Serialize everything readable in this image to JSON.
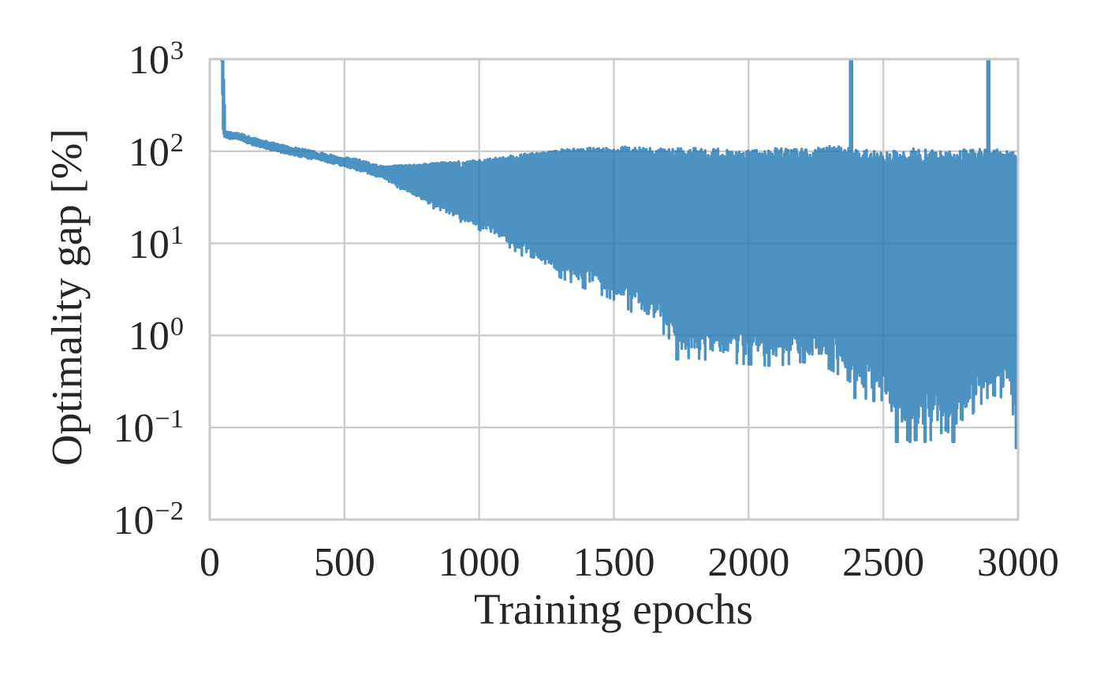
{
  "chart_data": {
    "type": "line",
    "title": "",
    "xlabel": "Training epochs",
    "ylabel": "Optimality gap [%]",
    "yscale": "log",
    "grid": true,
    "legend": "none",
    "xlim": [
      0,
      3000
    ],
    "ylim_log10": [
      -2,
      3
    ],
    "x_ticks": [
      0,
      500,
      1000,
      1500,
      2000,
      2500,
      3000
    ],
    "y_ticks": [
      {
        "base": "10",
        "exp": "3",
        "log10": 3
      },
      {
        "base": "10",
        "exp": "2",
        "log10": 2
      },
      {
        "base": "10",
        "exp": "1",
        "log10": 1
      },
      {
        "base": "10",
        "exp": "0",
        "log10": 0
      },
      {
        "base": "10",
        "exp": "−1",
        "log10": -1
      },
      {
        "base": "10",
        "exp": "−2",
        "log10": -2
      }
    ],
    "background_color": "#ffffff",
    "grid_color": "#cccccc",
    "spine_color": "#c9c9c9",
    "text_color": "#262626",
    "line_color": "#1f77b4",
    "line_opacity": 0.8,
    "series": [
      {
        "name": "optimality-gap",
        "description": "Noisy training curve on log scale; values in percent. Starts above 1000% (clipped at plot top) near epoch 45, drops to ~150%, declines slowly to ~70% by epoch 650, then oscillation envelope widens: upper envelope hovers near 100%, lower envelope decays to ~0.07% by epoch 2600.",
        "start_epoch": 44,
        "initial_value_pct": 1000,
        "envelope": {
          "epochs": [
            44,
            50,
            58,
            80,
            110,
            150,
            200,
            250,
            300,
            350,
            400,
            450,
            500,
            550,
            600,
            650,
            700,
            750,
            800,
            850,
            900,
            950,
            1000,
            1100,
            1200,
            1300,
            1400,
            1500,
            1600,
            1700,
            1750,
            1800,
            1900,
            2000,
            2100,
            2200,
            2300,
            2380,
            2420,
            2500,
            2550,
            2620,
            2680,
            2730,
            2780,
            2840,
            2900,
            2950,
            2990,
            3000
          ],
          "lower": [
            990,
            150,
            147,
            140,
            138,
            122,
            112,
            102,
            95,
            87,
            83,
            76,
            71,
            64,
            58,
            50,
            40,
            33,
            27,
            22,
            19,
            16,
            14,
            9.5,
            6,
            4.2,
            3.1,
            2.4,
            1.5,
            0.95,
            0.55,
            0.55,
            0.5,
            0.47,
            0.45,
            0.5,
            0.42,
            0.3,
            0.2,
            0.19,
            0.07,
            0.07,
            0.07,
            0.09,
            0.07,
            0.15,
            0.22,
            0.2,
            0.12,
            0.06
          ],
          "upper": [
            1000,
            1000,
            163,
            155,
            152,
            140,
            126,
            118,
            107,
            102,
            95,
            89,
            83,
            79,
            71,
            68,
            70,
            71,
            73,
            75,
            77,
            78,
            80,
            88,
            97,
            104,
            110,
            114,
            110,
            106,
            108,
            110,
            106,
            102,
            110,
            106,
            114,
            110,
            106,
            104,
            100,
            108,
            104,
            100,
            108,
            104,
            110,
            106,
            100,
            88
          ]
        },
        "spikes_to_top": [
          {
            "epoch": 2380,
            "value_pct": 1000
          },
          {
            "epoch": 2890,
            "value_pct": 1000
          }
        ],
        "deep_dips": [
          {
            "epoch": 1735,
            "value_pct": 0.55
          },
          {
            "epoch": 2395,
            "value_pct": 0.21
          },
          {
            "epoch": 2465,
            "value_pct": 0.3
          },
          {
            "epoch": 2550,
            "value_pct": 0.07
          },
          {
            "epoch": 2600,
            "value_pct": 0.07
          },
          {
            "epoch": 2655,
            "value_pct": 0.07
          },
          {
            "epoch": 2760,
            "value_pct": 0.07
          },
          {
            "epoch": 2995,
            "value_pct": 0.06
          }
        ]
      }
    ]
  }
}
